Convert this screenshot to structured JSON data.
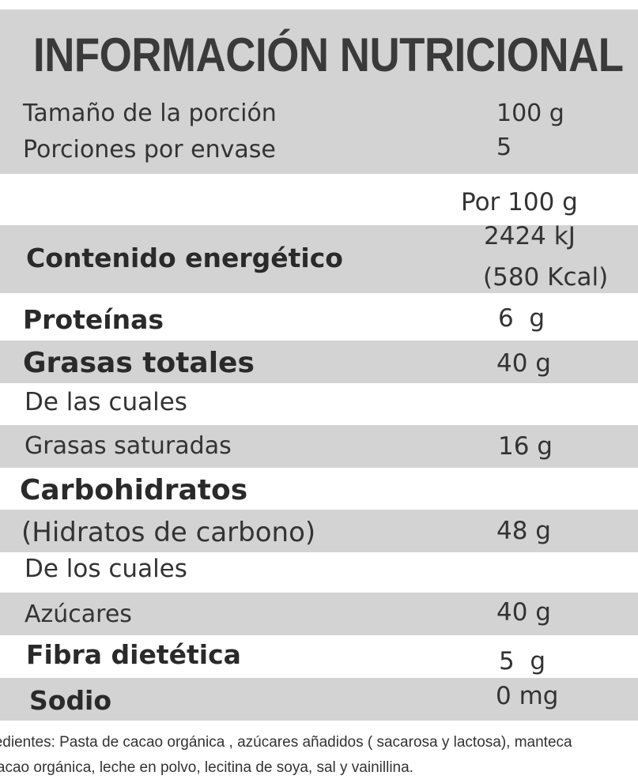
{
  "title": "INFORMACIÓN NUTRICIONAL",
  "serving": {
    "size_label": "Tamaño de la porción",
    "size_value": "100 g",
    "per_pack_label": "Porciones por envase",
    "per_pack_value": "5"
  },
  "column_header": "Por 100 g",
  "rows": {
    "energy": {
      "label": "Contenido energético",
      "value_kj": "2424 kJ",
      "value_kcal": "(580 Kcal)"
    },
    "protein": {
      "label": "Proteínas",
      "value": "6  g"
    },
    "fat": {
      "label": "Grasas totales",
      "value": "40 g"
    },
    "fat_of_which": {
      "label": "De las cuales"
    },
    "saturated": {
      "label": "Grasas saturadas",
      "value": "16 g"
    },
    "carbs": {
      "label": "Carbohidratos"
    },
    "carbs_alt": {
      "label": "(Hidratos de carbono)",
      "value": "48 g"
    },
    "carbs_of_which": {
      "label": "De los cuales"
    },
    "sugars": {
      "label": "Azúcares",
      "value": "40 g"
    },
    "fiber": {
      "label": "Fibra dietética",
      "value": "5  g"
    },
    "sodium": {
      "label": "Sodio",
      "value": "0 mg"
    }
  },
  "ingredients": {
    "line1": "Ingredientes: Pasta de cacao orgánica , azúcares añadidos ( sacarosa y lactosa), manteca",
    "line2": "de cacao orgánica, leche en polvo, lecitina de soya, sal y vainillina."
  }
}
